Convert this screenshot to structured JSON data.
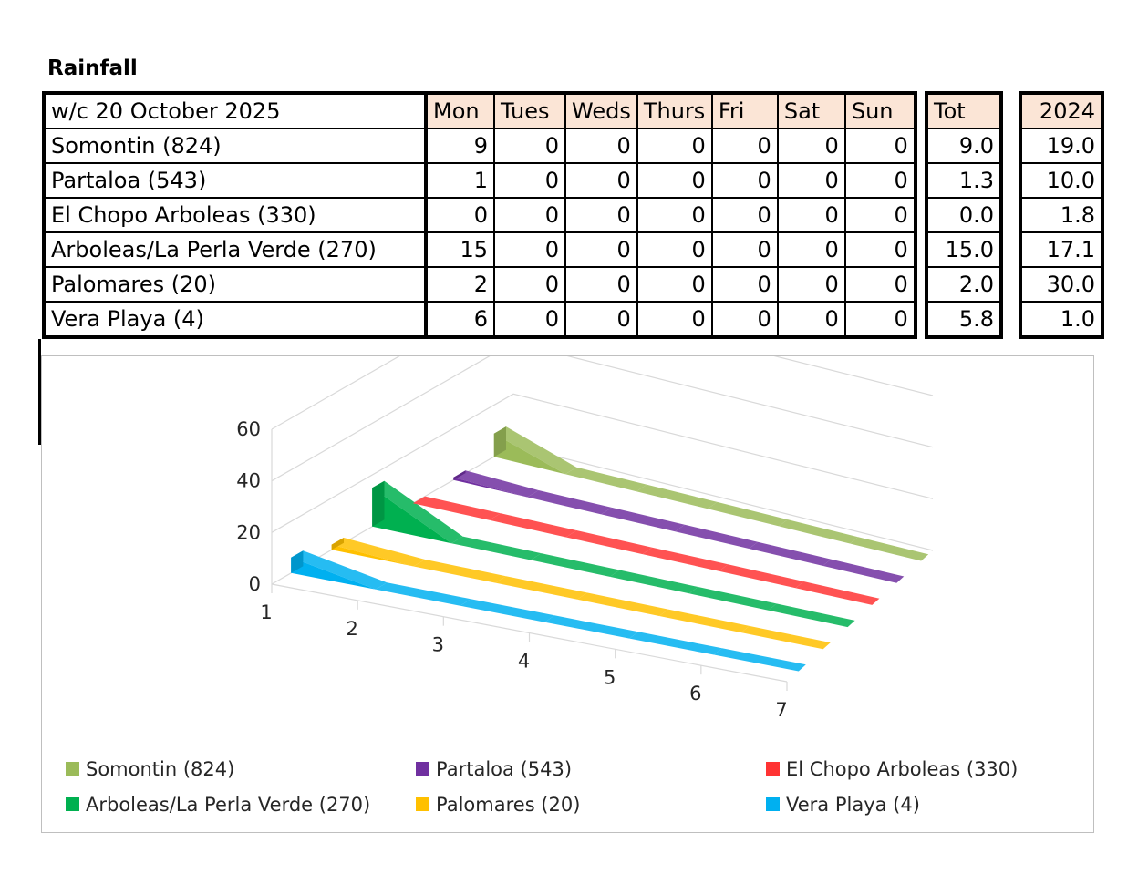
{
  "title": "Rainfall",
  "header": {
    "week_label": "w/c 20 October  2025",
    "days": [
      "Mon",
      "Tues",
      "Weds",
      "Thurs",
      "Fri",
      "Sat",
      "Sun"
    ],
    "tot": "Tot",
    "prev": "2024"
  },
  "rows": [
    {
      "site": "Somontin (824)",
      "days": [
        "9",
        "0",
        "0",
        "0",
        "0",
        "0",
        "0"
      ],
      "tot": "9.0",
      "prev": "19.0"
    },
    {
      "site": "Partaloa (543)",
      "days": [
        "1",
        "0",
        "0",
        "0",
        "0",
        "0",
        "0"
      ],
      "tot": "1.3",
      "prev": "10.0"
    },
    {
      "site": "El Chopo Arboleas (330)",
      "days": [
        "0",
        "0",
        "0",
        "0",
        "0",
        "0",
        "0"
      ],
      "tot": "0.0",
      "prev": "1.8"
    },
    {
      "site": "Arboleas/La Perla Verde (270)",
      "days": [
        "15",
        "0",
        "0",
        "0",
        "0",
        "0",
        "0"
      ],
      "tot": "15.0",
      "prev": "17.1"
    },
    {
      "site": "Palomares (20)",
      "days": [
        "2",
        "0",
        "0",
        "0",
        "0",
        "0",
        "0"
      ],
      "tot": "2.0",
      "prev": "30.0"
    },
    {
      "site": "Vera Playa (4)",
      "days": [
        "6",
        "0",
        "0",
        "0",
        "0",
        "0",
        "0"
      ],
      "tot": "5.8",
      "prev": "1.0"
    }
  ],
  "chart_data": {
    "type": "area",
    "x": [
      1,
      2,
      3,
      4,
      5,
      6,
      7
    ],
    "ylim": [
      0,
      60
    ],
    "yticks": [
      0,
      20,
      40,
      60
    ],
    "grid": true,
    "legend_position": "bottom",
    "series": [
      {
        "name": "Somontin (824)",
        "values": [
          9,
          0,
          0,
          0,
          0,
          0,
          0
        ],
        "color": "#9bbb59"
      },
      {
        "name": "Partaloa (543)",
        "values": [
          1,
          0,
          0,
          0,
          0,
          0,
          0
        ],
        "color": "#7030a0"
      },
      {
        "name": "El Chopo Arboleas (330)",
        "values": [
          0,
          0,
          0,
          0,
          0,
          0,
          0
        ],
        "color": "#ff3333"
      },
      {
        "name": "Arboleas/La Perla Verde (270)",
        "values": [
          15,
          0,
          0,
          0,
          0,
          0,
          0
        ],
        "color": "#00b050"
      },
      {
        "name": "Palomares (20)",
        "values": [
          2,
          0,
          0,
          0,
          0,
          0,
          0
        ],
        "color": "#ffc000"
      },
      {
        "name": "Vera Playa (4)",
        "values": [
          6,
          0,
          0,
          0,
          0,
          0,
          0
        ],
        "color": "#00b0f0"
      }
    ]
  }
}
